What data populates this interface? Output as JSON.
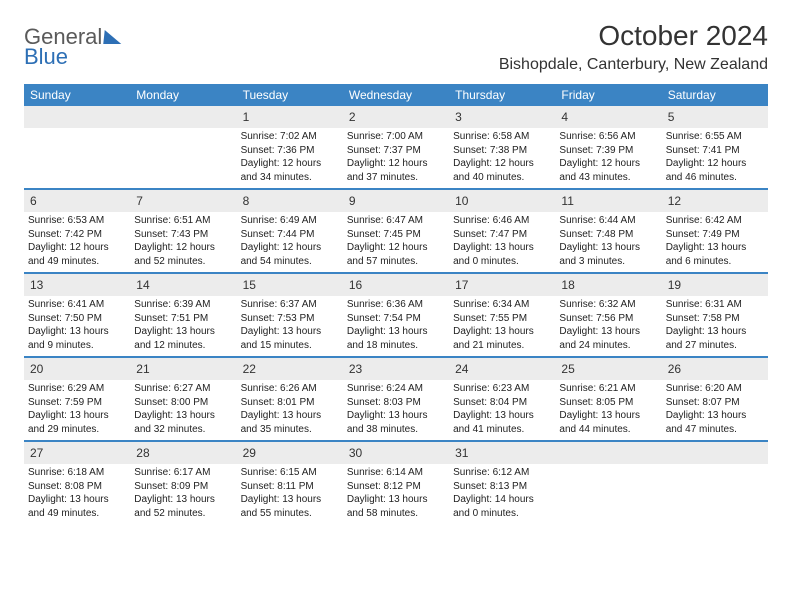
{
  "logo": {
    "text1": "General",
    "text2": "Blue"
  },
  "title": "October 2024",
  "location": "Bishopdale, Canterbury, New Zealand",
  "labels": {
    "sunrise": "Sunrise:",
    "sunset": "Sunset:",
    "daylight": "Daylight:"
  },
  "colors": {
    "header_bg": "#3b84c4",
    "header_text": "#ffffff",
    "daynum_bg": "#ececec",
    "week_border": "#3b84c4",
    "logo_blue": "#2d6fb5",
    "body_text": "#222222",
    "title_text": "#333333"
  },
  "typography": {
    "month_title_fontsize": 28,
    "location_fontsize": 16,
    "dow_fontsize": 12,
    "daynum_fontsize": 12,
    "body_fontsize": 10
  },
  "days_of_week": [
    "Sunday",
    "Monday",
    "Tuesday",
    "Wednesday",
    "Thursday",
    "Friday",
    "Saturday"
  ],
  "weeks": [
    [
      {
        "n": "",
        "sunrise": "",
        "sunset": "",
        "daylight": "",
        "empty": true
      },
      {
        "n": "",
        "sunrise": "",
        "sunset": "",
        "daylight": "",
        "empty": true
      },
      {
        "n": "1",
        "sunrise": "7:02 AM",
        "sunset": "7:36 PM",
        "daylight": "12 hours and 34 minutes."
      },
      {
        "n": "2",
        "sunrise": "7:00 AM",
        "sunset": "7:37 PM",
        "daylight": "12 hours and 37 minutes."
      },
      {
        "n": "3",
        "sunrise": "6:58 AM",
        "sunset": "7:38 PM",
        "daylight": "12 hours and 40 minutes."
      },
      {
        "n": "4",
        "sunrise": "6:56 AM",
        "sunset": "7:39 PM",
        "daylight": "12 hours and 43 minutes."
      },
      {
        "n": "5",
        "sunrise": "6:55 AM",
        "sunset": "7:41 PM",
        "daylight": "12 hours and 46 minutes."
      }
    ],
    [
      {
        "n": "6",
        "sunrise": "6:53 AM",
        "sunset": "7:42 PM",
        "daylight": "12 hours and 49 minutes."
      },
      {
        "n": "7",
        "sunrise": "6:51 AM",
        "sunset": "7:43 PM",
        "daylight": "12 hours and 52 minutes."
      },
      {
        "n": "8",
        "sunrise": "6:49 AM",
        "sunset": "7:44 PM",
        "daylight": "12 hours and 54 minutes."
      },
      {
        "n": "9",
        "sunrise": "6:47 AM",
        "sunset": "7:45 PM",
        "daylight": "12 hours and 57 minutes."
      },
      {
        "n": "10",
        "sunrise": "6:46 AM",
        "sunset": "7:47 PM",
        "daylight": "13 hours and 0 minutes."
      },
      {
        "n": "11",
        "sunrise": "6:44 AM",
        "sunset": "7:48 PM",
        "daylight": "13 hours and 3 minutes."
      },
      {
        "n": "12",
        "sunrise": "6:42 AM",
        "sunset": "7:49 PM",
        "daylight": "13 hours and 6 minutes."
      }
    ],
    [
      {
        "n": "13",
        "sunrise": "6:41 AM",
        "sunset": "7:50 PM",
        "daylight": "13 hours and 9 minutes."
      },
      {
        "n": "14",
        "sunrise": "6:39 AM",
        "sunset": "7:51 PM",
        "daylight": "13 hours and 12 minutes."
      },
      {
        "n": "15",
        "sunrise": "6:37 AM",
        "sunset": "7:53 PM",
        "daylight": "13 hours and 15 minutes."
      },
      {
        "n": "16",
        "sunrise": "6:36 AM",
        "sunset": "7:54 PM",
        "daylight": "13 hours and 18 minutes."
      },
      {
        "n": "17",
        "sunrise": "6:34 AM",
        "sunset": "7:55 PM",
        "daylight": "13 hours and 21 minutes."
      },
      {
        "n": "18",
        "sunrise": "6:32 AM",
        "sunset": "7:56 PM",
        "daylight": "13 hours and 24 minutes."
      },
      {
        "n": "19",
        "sunrise": "6:31 AM",
        "sunset": "7:58 PM",
        "daylight": "13 hours and 27 minutes."
      }
    ],
    [
      {
        "n": "20",
        "sunrise": "6:29 AM",
        "sunset": "7:59 PM",
        "daylight": "13 hours and 29 minutes."
      },
      {
        "n": "21",
        "sunrise": "6:27 AM",
        "sunset": "8:00 PM",
        "daylight": "13 hours and 32 minutes."
      },
      {
        "n": "22",
        "sunrise": "6:26 AM",
        "sunset": "8:01 PM",
        "daylight": "13 hours and 35 minutes."
      },
      {
        "n": "23",
        "sunrise": "6:24 AM",
        "sunset": "8:03 PM",
        "daylight": "13 hours and 38 minutes."
      },
      {
        "n": "24",
        "sunrise": "6:23 AM",
        "sunset": "8:04 PM",
        "daylight": "13 hours and 41 minutes."
      },
      {
        "n": "25",
        "sunrise": "6:21 AM",
        "sunset": "8:05 PM",
        "daylight": "13 hours and 44 minutes."
      },
      {
        "n": "26",
        "sunrise": "6:20 AM",
        "sunset": "8:07 PM",
        "daylight": "13 hours and 47 minutes."
      }
    ],
    [
      {
        "n": "27",
        "sunrise": "6:18 AM",
        "sunset": "8:08 PM",
        "daylight": "13 hours and 49 minutes."
      },
      {
        "n": "28",
        "sunrise": "6:17 AM",
        "sunset": "8:09 PM",
        "daylight": "13 hours and 52 minutes."
      },
      {
        "n": "29",
        "sunrise": "6:15 AM",
        "sunset": "8:11 PM",
        "daylight": "13 hours and 55 minutes."
      },
      {
        "n": "30",
        "sunrise": "6:14 AM",
        "sunset": "8:12 PM",
        "daylight": "13 hours and 58 minutes."
      },
      {
        "n": "31",
        "sunrise": "6:12 AM",
        "sunset": "8:13 PM",
        "daylight": "14 hours and 0 minutes."
      },
      {
        "n": "",
        "sunrise": "",
        "sunset": "",
        "daylight": "",
        "empty": true
      },
      {
        "n": "",
        "sunrise": "",
        "sunset": "",
        "daylight": "",
        "empty": true
      }
    ]
  ]
}
